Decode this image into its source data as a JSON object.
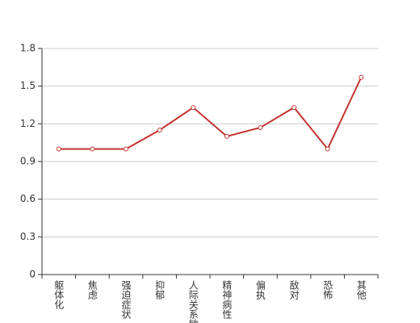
{
  "chart_data": {
    "type": "line",
    "categories": [
      "躯体化",
      "焦虑",
      "强迫症状",
      "抑郁",
      "人际关系敏感",
      "精神病性",
      "偏执",
      "敌对",
      "恐怖",
      "其他"
    ],
    "values": [
      1.0,
      1.0,
      1.0,
      1.15,
      1.33,
      1.1,
      1.17,
      1.33,
      1.0,
      1.57
    ],
    "color": "#c23531",
    "ylim": [
      0,
      1.8
    ],
    "yticks": [
      0,
      0.3,
      0.6,
      0.9,
      1.2,
      1.5,
      1.8
    ],
    "grid": true
  }
}
